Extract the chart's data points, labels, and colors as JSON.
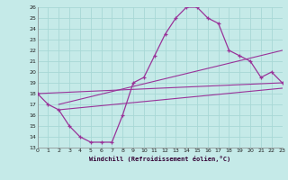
{
  "xlabel": "Windchill (Refroidissement éolien,°C)",
  "bg_color": "#c5eae8",
  "grid_color": "#a8d8d5",
  "line_color": "#993399",
  "xlim": [
    0,
    23
  ],
  "ylim": [
    13,
    26
  ],
  "xticks": [
    0,
    1,
    2,
    3,
    4,
    5,
    6,
    7,
    8,
    9,
    10,
    11,
    12,
    13,
    14,
    15,
    16,
    17,
    18,
    19,
    20,
    21,
    22,
    23
  ],
  "yticks": [
    13,
    14,
    15,
    16,
    17,
    18,
    19,
    20,
    21,
    22,
    23,
    24,
    25,
    26
  ],
  "curve1_x": [
    0,
    1,
    2,
    3,
    4,
    5,
    6,
    7,
    8,
    9,
    10,
    11,
    12,
    13,
    14,
    15,
    16,
    17,
    18,
    19,
    20,
    21,
    22,
    23
  ],
  "curve1_y": [
    18,
    17,
    16.5,
    15,
    14,
    13.5,
    13.5,
    13.5,
    16,
    19,
    19.5,
    21.5,
    23.5,
    25,
    26,
    26,
    25,
    24.5,
    22,
    21.5,
    21,
    19.5,
    20,
    19
  ],
  "line2_x": [
    0,
    23
  ],
  "line2_y": [
    18,
    19
  ],
  "line3_x": [
    2,
    23
  ],
  "line3_y": [
    17,
    22
  ],
  "line4_x": [
    2,
    23
  ],
  "line4_y": [
    16.5,
    18.5
  ]
}
